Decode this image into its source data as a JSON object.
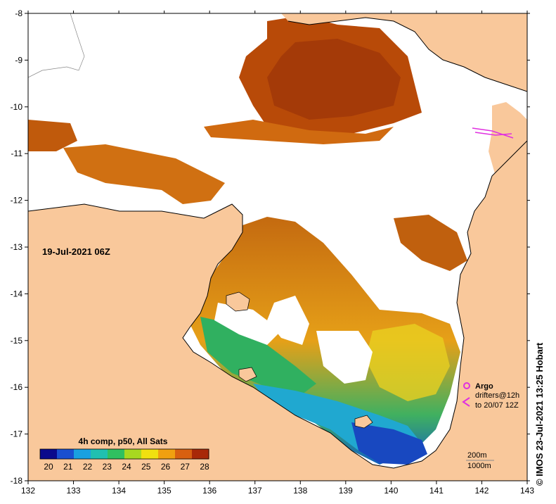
{
  "map": {
    "timestamp": "19-Jul-2021 06Z",
    "credit": "© IMOS 23-Jul-2021 13:25 Hobart",
    "longitude_ticks": [
      "132",
      "133",
      "134",
      "135",
      "136",
      "137",
      "138",
      "139",
      "140",
      "141",
      "142",
      "143"
    ],
    "latitude_ticks": [
      "-8",
      "-9",
      "-10",
      "-11",
      "-12",
      "-13",
      "-14",
      "-15",
      "-16",
      "-17",
      "-18"
    ],
    "lon_range": [
      132,
      143
    ],
    "lat_range": [
      -18,
      -8
    ],
    "land_color": "#f9c89b",
    "no_data_color": "#ffffff"
  },
  "colorbar": {
    "title": "4h comp, p50, All Sats",
    "ticks": [
      "20",
      "21",
      "22",
      "23",
      "24",
      "25",
      "26",
      "27",
      "28"
    ],
    "range": [
      20,
      28
    ],
    "colors": [
      "#0a0a8c",
      "#1a4fd0",
      "#1aa0e0",
      "#20c0b0",
      "#30c060",
      "#a8d820",
      "#f0e010",
      "#f0a010",
      "#d86010",
      "#a82808"
    ]
  },
  "legend": {
    "argo_label": "Argo",
    "drifters_label": "drifters@12h",
    "drifters_period": "to 20/07 12Z",
    "argo_color": "#e030e0",
    "drifter_color": "#e030e0",
    "scale_200": "200m",
    "scale_1000": "1000m"
  }
}
